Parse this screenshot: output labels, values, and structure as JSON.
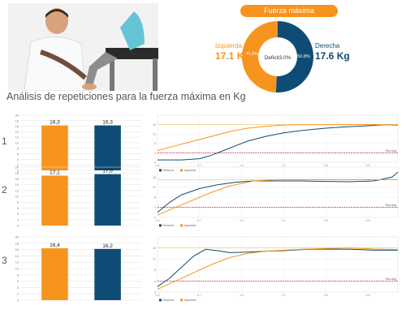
{
  "donut": {
    "title": "Fuerza máxima",
    "left_label": "Izquierda",
    "left_value": "17.1 Kg",
    "right_label": "Derecha",
    "right_value": "17.6 Kg",
    "center_label": "Deficit3.0%",
    "left_pct_label": "49.2%",
    "right_pct_label": "50.8%",
    "left_pct": 49.2,
    "right_pct": 50.8
  },
  "section_title": "Análisis de repeticiones para la fuerza máxima en Kg",
  "colors": {
    "left": "#F7941E",
    "right": "#0F4C75",
    "grid": "#d9d9d9",
    "threshold": "#d0021b",
    "plateau": "#f7c97e"
  },
  "chart_data": [
    {
      "type": "bar",
      "row": "1",
      "categories": [
        "Izquierda",
        "Derecha"
      ],
      "values": [
        16.3,
        16.3
      ],
      "labels": [
        "16,3",
        "16,3"
      ],
      "ylim": [
        0,
        20
      ],
      "yticks": [
        "0",
        "2",
        "4",
        "6",
        "8",
        "10",
        "12",
        "14",
        "16",
        "18",
        "20"
      ]
    },
    {
      "type": "bar",
      "row": "2",
      "categories": [
        "Izquierda",
        "Derecha"
      ],
      "values": [
        17.1,
        17.6
      ],
      "labels": [
        "17,1",
        "17,6"
      ],
      "ylim": [
        0,
        20
      ],
      "yticks": [
        "0",
        "2",
        "4",
        "6",
        "8",
        "10",
        "12",
        "14",
        "16",
        "18",
        "20"
      ]
    },
    {
      "type": "bar",
      "row": "3",
      "categories": [
        "Izquierda",
        "Derecha"
      ],
      "values": [
        16.4,
        16.2
      ],
      "labels": [
        "16,4",
        "16,2"
      ],
      "ylim": [
        0,
        20
      ],
      "yticks": [
        "0",
        "2",
        "4",
        "6",
        "8",
        "10",
        "12",
        "14",
        "16",
        "18",
        "20"
      ]
    },
    {
      "type": "line",
      "row": "1",
      "xlim": [
        0,
        4
      ],
      "ylim": [
        0,
        20
      ],
      "xticks": [
        "0.0",
        "0.7",
        "1.4",
        "2.1",
        "2.8",
        "3.5"
      ],
      "yticks": [
        "0",
        "4",
        "8",
        "12",
        "16"
      ],
      "threshold": 4,
      "threshold_label": "Fluo Aug",
      "legend": [
        "Derecha",
        "Izquierda"
      ],
      "series": [
        {
          "name": "Derecha",
          "x": [
            0,
            0.4,
            0.7,
            0.9,
            1.1,
            1.3,
            1.5,
            1.8,
            2.1,
            2.4,
            2.8,
            3.1,
            3.5,
            3.8,
            4.0
          ],
          "y": [
            1,
            1,
            1.5,
            3,
            5,
            7,
            9,
            11,
            12.5,
            13.5,
            14.5,
            15,
            15.5,
            16,
            15.8
          ]
        },
        {
          "name": "Izquierda",
          "x": [
            0,
            0.3,
            0.6,
            0.9,
            1.2,
            1.5,
            1.8,
            2.1,
            2.4,
            2.8,
            3.2,
            3.6,
            4.0
          ],
          "y": [
            5,
            7,
            9,
            11,
            13,
            14.5,
            15.3,
            15.8,
            16,
            16,
            16,
            16,
            16
          ]
        }
      ]
    },
    {
      "type": "line",
      "row": "2",
      "xlim": [
        0,
        4
      ],
      "ylim": [
        0,
        20
      ],
      "xticks": [
        "0.0",
        "0.7",
        "1.4",
        "2.1",
        "2.8",
        "3.5"
      ],
      "yticks": [
        "0",
        "4",
        "8",
        "12",
        "16"
      ],
      "threshold": 4,
      "threshold_label": "Fluo Aug",
      "legend": [
        "Derecha",
        "Izquierda"
      ],
      "series": [
        {
          "name": "Derecha",
          "x": [
            0,
            0.2,
            0.4,
            0.7,
            1.0,
            1.3,
            1.6,
            2.0,
            2.4,
            2.8,
            3.2,
            3.6,
            3.9,
            4.0
          ],
          "y": [
            2,
            6,
            9,
            11.5,
            13,
            14,
            14.5,
            14.5,
            14.5,
            14.3,
            14.2,
            14.5,
            16,
            18
          ]
        },
        {
          "name": "Izquierda",
          "x": [
            0,
            0.3,
            0.6,
            0.9,
            1.2,
            1.6,
            2.0,
            2.4,
            2.8,
            3.2,
            3.6,
            4.0
          ],
          "y": [
            1,
            4,
            7,
            10,
            12.5,
            14.5,
            15,
            15,
            15,
            15,
            15,
            15
          ]
        }
      ]
    },
    {
      "type": "line",
      "row": "3",
      "xlim": [
        0,
        4
      ],
      "ylim": [
        0,
        20
      ],
      "xticks": [
        "0.0",
        "0.7",
        "1.4",
        "2.1",
        "2.8",
        "3.5"
      ],
      "yticks": [
        "0",
        "4",
        "8",
        "12",
        "16"
      ],
      "threshold": 4,
      "threshold_label": "Fluo Aug",
      "legend": [
        "Derecha",
        "Izquierda"
      ],
      "series": [
        {
          "name": "Derecha",
          "x": [
            0,
            0.2,
            0.4,
            0.6,
            0.8,
            1.0,
            1.2,
            1.5,
            1.8,
            2.1,
            2.4,
            2.8,
            3.2,
            3.6,
            4.0
          ],
          "y": [
            2,
            5,
            9,
            13,
            15.5,
            15,
            14.3,
            14.5,
            14.8,
            15,
            15.4,
            15.6,
            15.5,
            15.2,
            15.2
          ]
        },
        {
          "name": "Izquierda",
          "x": [
            0,
            0.3,
            0.6,
            0.9,
            1.2,
            1.5,
            1.8,
            2.1,
            2.4,
            2.8,
            3.2,
            3.6,
            4.0
          ],
          "y": [
            1,
            4,
            7,
            10,
            12.5,
            14,
            14.8,
            15.2,
            15.5,
            15.8,
            16,
            15.6,
            15.4
          ]
        }
      ]
    }
  ]
}
